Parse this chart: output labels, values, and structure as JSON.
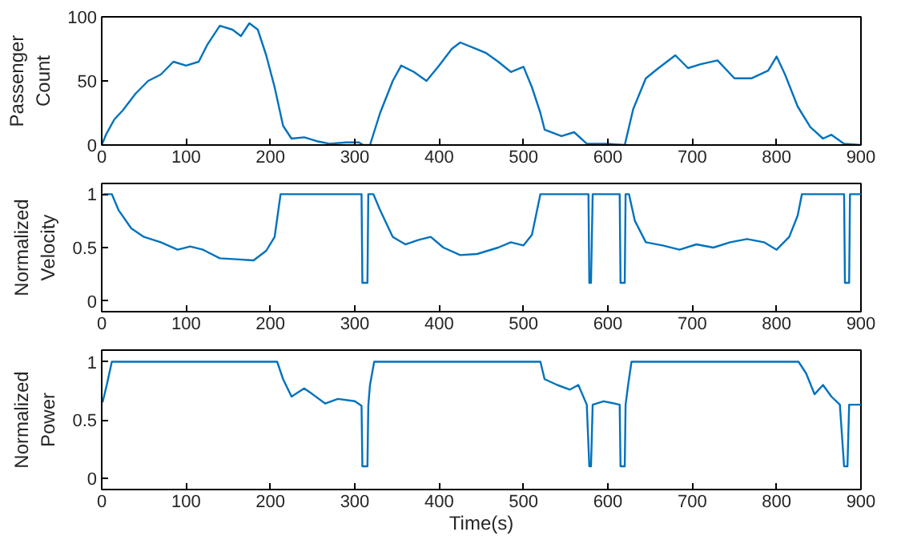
{
  "chart_data": [
    {
      "type": "line",
      "ylabel": "Passenger Count",
      "xlim": [
        0,
        900
      ],
      "ylim": [
        0,
        100
      ],
      "xticks": [
        0,
        100,
        200,
        300,
        400,
        500,
        600,
        700,
        800,
        900
      ],
      "yticks": [
        0,
        50,
        100
      ],
      "x": [
        0,
        5,
        15,
        25,
        40,
        55,
        70,
        85,
        100,
        115,
        125,
        140,
        155,
        165,
        175,
        185,
        195,
        205,
        215,
        225,
        240,
        255,
        270,
        290,
        305,
        310,
        318,
        330,
        345,
        355,
        370,
        385,
        400,
        415,
        425,
        440,
        455,
        470,
        485,
        500,
        510,
        520,
        525,
        545,
        560,
        575,
        600,
        620,
        630,
        645,
        660,
        680,
        695,
        710,
        730,
        750,
        770,
        790,
        800,
        810,
        825,
        840,
        855,
        865,
        880,
        900
      ],
      "series": [
        {
          "color": "#0072bd",
          "values": [
            0,
            8,
            20,
            27,
            40,
            50,
            55,
            65,
            62,
            65,
            78,
            93,
            90,
            85,
            95,
            90,
            70,
            45,
            15,
            5,
            6,
            3,
            1,
            2,
            2,
            0,
            0,
            25,
            50,
            62,
            57,
            50,
            62,
            75,
            80,
            76,
            72,
            65,
            57,
            61,
            45,
            25,
            12,
            7,
            10,
            1,
            1,
            0,
            28,
            52,
            60,
            70,
            60,
            63,
            66,
            52,
            52,
            58,
            69,
            55,
            30,
            14,
            5,
            8,
            1,
            0
          ]
        }
      ]
    },
    {
      "type": "line",
      "ylabel": "Normalized Velocity",
      "xlim": [
        0,
        900
      ],
      "ylim": [
        -0.1,
        1.1
      ],
      "xticks": [
        0,
        100,
        200,
        300,
        400,
        500,
        600,
        700,
        800,
        900
      ],
      "yticks": [
        0,
        0.5,
        1
      ],
      "x": [
        2,
        12,
        20,
        35,
        50,
        70,
        90,
        105,
        120,
        140,
        160,
        180,
        195,
        205,
        212,
        308,
        309,
        315,
        316,
        322,
        330,
        345,
        360,
        375,
        390,
        405,
        425,
        445,
        470,
        485,
        500,
        510,
        520,
        577,
        578,
        580,
        582,
        614,
        615,
        620,
        621,
        625,
        632,
        645,
        665,
        685,
        705,
        725,
        745,
        765,
        785,
        800,
        815,
        825,
        830,
        880,
        881,
        886,
        887,
        900
      ],
      "series": [
        {
          "color": "#0072bd",
          "values": [
            1,
            1,
            0.85,
            0.68,
            0.6,
            0.55,
            0.48,
            0.51,
            0.48,
            0.4,
            0.39,
            0.38,
            0.47,
            0.6,
            1,
            1,
            0.17,
            0.17,
            1,
            1,
            0.85,
            0.6,
            0.53,
            0.57,
            0.6,
            0.5,
            0.43,
            0.44,
            0.5,
            0.55,
            0.52,
            0.62,
            1,
            1,
            0.17,
            0.17,
            1,
            1,
            0.17,
            0.17,
            1,
            1,
            0.75,
            0.55,
            0.52,
            0.48,
            0.53,
            0.5,
            0.55,
            0.58,
            0.55,
            0.48,
            0.6,
            0.8,
            1,
            1,
            0.17,
            0.17,
            1,
            1
          ]
        }
      ]
    },
    {
      "type": "line",
      "ylabel": "Normalized Power",
      "xlabel": "Time(s)",
      "xlim": [
        0,
        900
      ],
      "ylim": [
        -0.1,
        1.1
      ],
      "xticks": [
        0,
        100,
        200,
        300,
        400,
        500,
        600,
        700,
        800,
        900
      ],
      "yticks": [
        0,
        0.5,
        1
      ],
      "x": [
        1,
        6,
        12,
        208,
        215,
        225,
        240,
        250,
        265,
        280,
        300,
        308,
        309,
        315,
        316,
        318,
        323,
        520,
        525,
        540,
        555,
        565,
        575,
        578,
        580,
        582,
        595,
        614,
        615,
        620,
        621,
        624,
        628,
        826,
        835,
        845,
        855,
        865,
        875,
        880,
        884,
        886,
        900
      ],
      "series": [
        {
          "color": "#0072bd",
          "values": [
            0.65,
            0.8,
            1,
            1,
            0.85,
            0.7,
            0.77,
            0.72,
            0.64,
            0.68,
            0.66,
            0.62,
            0.1,
            0.1,
            0.62,
            0.8,
            1,
            1,
            0.85,
            0.8,
            0.76,
            0.8,
            0.63,
            0.1,
            0.1,
            0.63,
            0.66,
            0.63,
            0.1,
            0.1,
            0.63,
            0.8,
            1,
            1,
            0.9,
            0.72,
            0.8,
            0.7,
            0.63,
            0.1,
            0.1,
            0.63,
            0.63
          ]
        }
      ]
    }
  ]
}
